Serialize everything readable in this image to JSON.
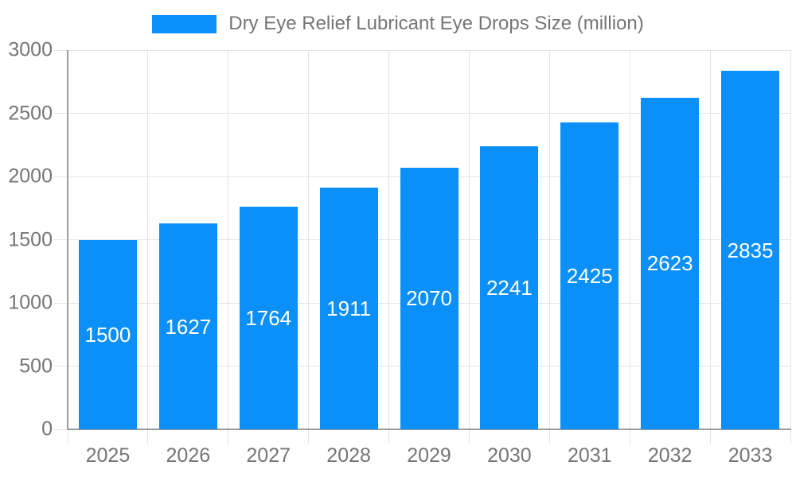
{
  "legend": {
    "label": "Dry Eye Relief Lubricant Eye Drops Size (million)"
  },
  "chart_data": {
    "type": "bar",
    "title": "Dry Eye Relief Lubricant Eye Drops Size (million)",
    "categories": [
      "2025",
      "2026",
      "2027",
      "2028",
      "2029",
      "2030",
      "2031",
      "2032",
      "2033"
    ],
    "values": [
      1500,
      1627,
      1764,
      1911,
      2070,
      2241,
      2425,
      2623,
      2835
    ],
    "xlabel": "",
    "ylabel": "",
    "ylim": [
      0,
      3000
    ],
    "y_ticks": [
      0,
      500,
      1000,
      1500,
      2000,
      2500,
      3000
    ],
    "grid": true,
    "legend_position": "top",
    "value_label_position": "inside-center",
    "colors": {
      "bar": "#0b90f9",
      "value_label": "#ffffff",
      "axis_text": "#757575",
      "grid_line": "#e3e3e3",
      "tick_line": "#d9d9d9",
      "axis_line": "#9c9c9c",
      "background": "#ffffff"
    }
  }
}
